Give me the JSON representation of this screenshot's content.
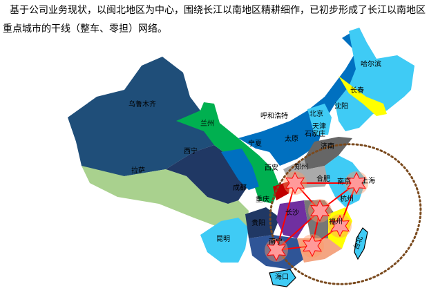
{
  "intro_text": "基于公司业务现状，以闽北地区为中心，围绕长江以南地区精耕细作，已初步形成了长江以南地区重点城市的干线（整车、零担）网络。",
  "colors": {
    "hub_star": "#ff9a9a",
    "route": "#ff0000",
    "coverage_ring": "#7a4a1e"
  },
  "cities": {
    "wulumuqi": "乌鲁木齐",
    "lanzhou": "兰州",
    "xining": "西宁",
    "lasa": "拉萨",
    "ningxia": "宁夏",
    "xian": "西安",
    "chengdu": "成都",
    "chongqing": "重庆",
    "guiyang": "贵阳",
    "kunming": "昆明",
    "huhehaote": "呼和浩特",
    "beijing": "北京",
    "tianjin": "天津",
    "shijiazhuang": "石家庄",
    "taiyuan": "太原",
    "jinan": "济南",
    "zhengzhou": "郑州",
    "hefei": "合肥",
    "nanjing": "南京",
    "shanghai": "上海",
    "hangzhou": "杭州",
    "changsha": "长沙",
    "fuzhou": "福州",
    "nanning": "南宁",
    "haikou": "海口",
    "taibei": "台北",
    "haerbin": "哈尔滨",
    "changchun": "长春",
    "shenyang": "沈阳"
  }
}
